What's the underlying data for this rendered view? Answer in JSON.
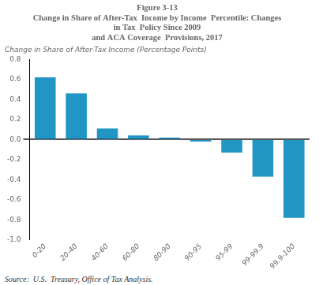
{
  "chart_data": {
    "type": "bar",
    "title": [
      "Figure 3-13",
      "Change in Share of After-Tax  Income by Income  Percentile: Changes",
      "in Tax  Policy Since 2009",
      "and ACA Coverage  Provisions, 2017"
    ],
    "ylabel": "Change in Share of After-Tax Income (Percentage Points)",
    "categories": [
      "0-20",
      "20-40",
      "40-60",
      "60-80",
      "80-90",
      "90-95",
      "95-99",
      "99-99.9",
      "99.9-100"
    ],
    "values": [
      0.62,
      0.46,
      0.11,
      0.04,
      0.02,
      -0.02,
      -0.13,
      -0.37,
      -0.78
    ],
    "color": "#2196C4",
    "ylim": [
      -1.0,
      0.8
    ],
    "yticks": [
      {
        "value": -1.0,
        "label": "-1.0"
      },
      -0.8,
      -0.6,
      -0.4,
      -0.2,
      {
        "value": 0.0,
        "label": "0.0"
      },
      0.2,
      0.4,
      0.6,
      0.8
    ],
    "grid": false,
    "annotations": [
      "Source:  U.S.  Treasury, Office of Tax Analysis."
    ]
  }
}
